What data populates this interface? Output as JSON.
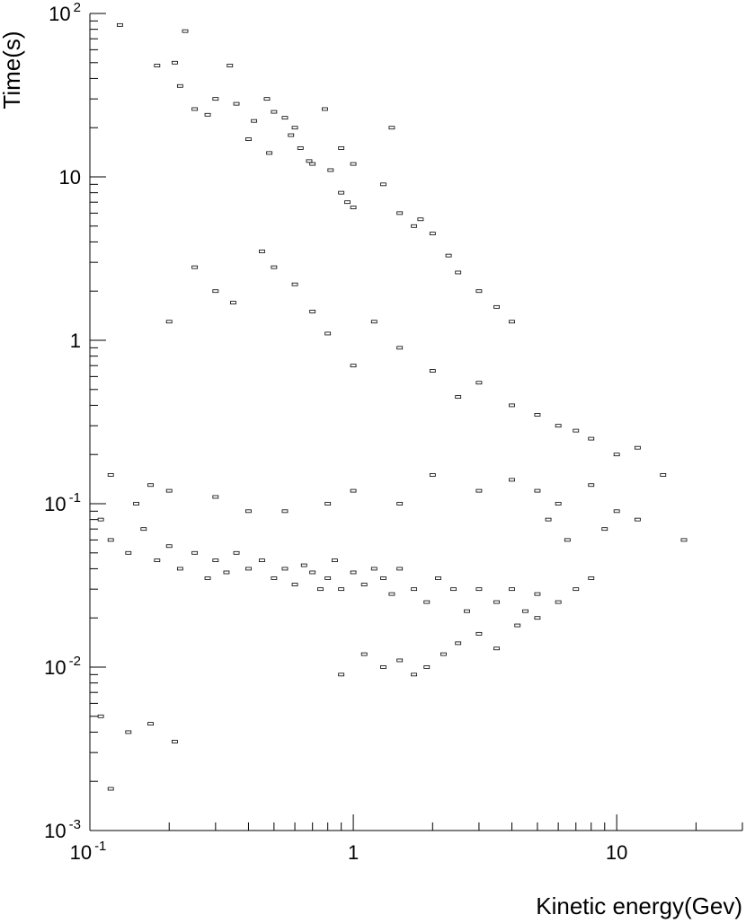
{
  "chart_data": {
    "type": "scatter",
    "style": "box-histogram",
    "xlabel": "Kinetic energy(Gev)",
    "ylabel": "Time(s)",
    "xscale": "log",
    "yscale": "log",
    "xlim": [
      0.1,
      30
    ],
    "ylim": [
      0.001,
      100
    ],
    "grid": false,
    "legend": "none",
    "x_ticks": [
      {
        "value": 0.1,
        "label_base": "10",
        "label_exp": "-1"
      },
      {
        "value": 1,
        "label_base": "1",
        "label_exp": ""
      },
      {
        "value": 10,
        "label_base": "10",
        "label_exp": ""
      }
    ],
    "y_ticks": [
      {
        "value": 0.001,
        "label_base": "10",
        "label_exp": "-3"
      },
      {
        "value": 0.01,
        "label_base": "10",
        "label_exp": "-2"
      },
      {
        "value": 0.1,
        "label_base": "10",
        "label_exp": "-1"
      },
      {
        "value": 1,
        "label_base": "1",
        "label_exp": ""
      },
      {
        "value": 10,
        "label_base": "10",
        "label_exp": ""
      },
      {
        "value": 100,
        "label_base": "10",
        "label_exp": "2"
      }
    ],
    "points": [
      [
        0.13,
        85
      ],
      [
        0.23,
        78
      ],
      [
        0.21,
        50
      ],
      [
        0.18,
        48
      ],
      [
        0.34,
        48
      ],
      [
        0.22,
        36
      ],
      [
        0.25,
        26
      ],
      [
        0.28,
        24
      ],
      [
        0.3,
        30
      ],
      [
        0.36,
        28
      ],
      [
        0.42,
        22
      ],
      [
        0.47,
        30
      ],
      [
        0.5,
        25
      ],
      [
        0.55,
        23
      ],
      [
        0.6,
        20
      ],
      [
        0.63,
        15
      ],
      [
        0.7,
        12
      ],
      [
        0.78,
        26
      ],
      [
        0.82,
        11
      ],
      [
        0.9,
        8
      ],
      [
        0.95,
        7
      ],
      [
        1.0,
        6.5
      ],
      [
        1.3,
        9
      ],
      [
        1.5,
        6
      ],
      [
        1.8,
        5.5
      ],
      [
        2.0,
        4.5
      ],
      [
        2.3,
        3.3
      ],
      [
        2.5,
        2.6
      ],
      [
        3.0,
        2.0
      ],
      [
        3.5,
        1.6
      ],
      [
        4.0,
        1.3
      ],
      [
        1.4,
        20
      ],
      [
        1.0,
        12
      ],
      [
        0.4,
        17
      ],
      [
        0.48,
        14
      ],
      [
        0.58,
        18
      ],
      [
        0.68,
        12.5
      ],
      [
        0.9,
        15
      ],
      [
        1.7,
        5
      ],
      [
        0.2,
        1.3
      ],
      [
        0.25,
        2.8
      ],
      [
        0.3,
        2.0
      ],
      [
        0.35,
        1.7
      ],
      [
        0.45,
        3.5
      ],
      [
        0.5,
        2.8
      ],
      [
        0.6,
        2.2
      ],
      [
        0.7,
        1.5
      ],
      [
        0.8,
        1.1
      ],
      [
        1.0,
        0.7
      ],
      [
        1.2,
        1.3
      ],
      [
        1.5,
        0.9
      ],
      [
        2.0,
        0.65
      ],
      [
        2.5,
        0.45
      ],
      [
        3.0,
        0.55
      ],
      [
        4.0,
        0.4
      ],
      [
        5.0,
        0.35
      ],
      [
        6.0,
        0.3
      ],
      [
        7.0,
        0.28
      ],
      [
        8.0,
        0.25
      ],
      [
        10.0,
        0.2
      ],
      [
        12.0,
        0.22
      ],
      [
        15.0,
        0.15
      ],
      [
        18.0,
        0.06
      ],
      [
        6.5,
        0.06
      ],
      [
        5.5,
        0.08
      ],
      [
        9.0,
        0.07
      ],
      [
        0.11,
        0.08
      ],
      [
        0.12,
        0.06
      ],
      [
        0.14,
        0.05
      ],
      [
        0.16,
        0.07
      ],
      [
        0.18,
        0.045
      ],
      [
        0.2,
        0.055
      ],
      [
        0.22,
        0.04
      ],
      [
        0.25,
        0.05
      ],
      [
        0.28,
        0.035
      ],
      [
        0.3,
        0.045
      ],
      [
        0.33,
        0.038
      ],
      [
        0.36,
        0.05
      ],
      [
        0.4,
        0.04
      ],
      [
        0.45,
        0.045
      ],
      [
        0.5,
        0.035
      ],
      [
        0.55,
        0.04
      ],
      [
        0.6,
        0.032
      ],
      [
        0.65,
        0.042
      ],
      [
        0.7,
        0.038
      ],
      [
        0.75,
        0.03
      ],
      [
        0.8,
        0.035
      ],
      [
        0.85,
        0.045
      ],
      [
        0.9,
        0.03
      ],
      [
        1.0,
        0.038
      ],
      [
        1.1,
        0.032
      ],
      [
        1.2,
        0.04
      ],
      [
        1.3,
        0.035
      ],
      [
        1.4,
        0.028
      ],
      [
        1.5,
        0.04
      ],
      [
        1.7,
        0.03
      ],
      [
        1.9,
        0.025
      ],
      [
        2.1,
        0.035
      ],
      [
        2.4,
        0.03
      ],
      [
        2.7,
        0.022
      ],
      [
        3.0,
        0.03
      ],
      [
        3.5,
        0.025
      ],
      [
        4.0,
        0.03
      ],
      [
        4.5,
        0.022
      ],
      [
        5.0,
        0.028
      ],
      [
        6.0,
        0.025
      ],
      [
        7.0,
        0.03
      ],
      [
        8.0,
        0.035
      ],
      [
        0.9,
        0.009
      ],
      [
        1.1,
        0.012
      ],
      [
        1.3,
        0.01
      ],
      [
        1.5,
        0.011
      ],
      [
        1.7,
        0.009
      ],
      [
        1.9,
        0.01
      ],
      [
        2.2,
        0.012
      ],
      [
        2.5,
        0.014
      ],
      [
        3.0,
        0.016
      ],
      [
        3.5,
        0.013
      ],
      [
        4.2,
        0.018
      ],
      [
        5.0,
        0.02
      ],
      [
        0.12,
        0.0018
      ],
      [
        0.14,
        0.004
      ],
      [
        0.17,
        0.0045
      ],
      [
        0.21,
        0.0035
      ],
      [
        0.11,
        0.005
      ],
      [
        0.15,
        0.1
      ],
      [
        0.2,
        0.12
      ],
      [
        0.12,
        0.15
      ],
      [
        0.17,
        0.13
      ],
      [
        0.3,
        0.11
      ],
      [
        0.4,
        0.09
      ],
      [
        0.55,
        0.09
      ],
      [
        0.8,
        0.1
      ],
      [
        1.0,
        0.12
      ],
      [
        1.5,
        0.1
      ],
      [
        2.0,
        0.15
      ],
      [
        3.0,
        0.12
      ],
      [
        4.0,
        0.14
      ],
      [
        5.0,
        0.12
      ],
      [
        6.0,
        0.1
      ],
      [
        8.0,
        0.13
      ],
      [
        10.0,
        0.09
      ],
      [
        12.0,
        0.08
      ]
    ]
  }
}
